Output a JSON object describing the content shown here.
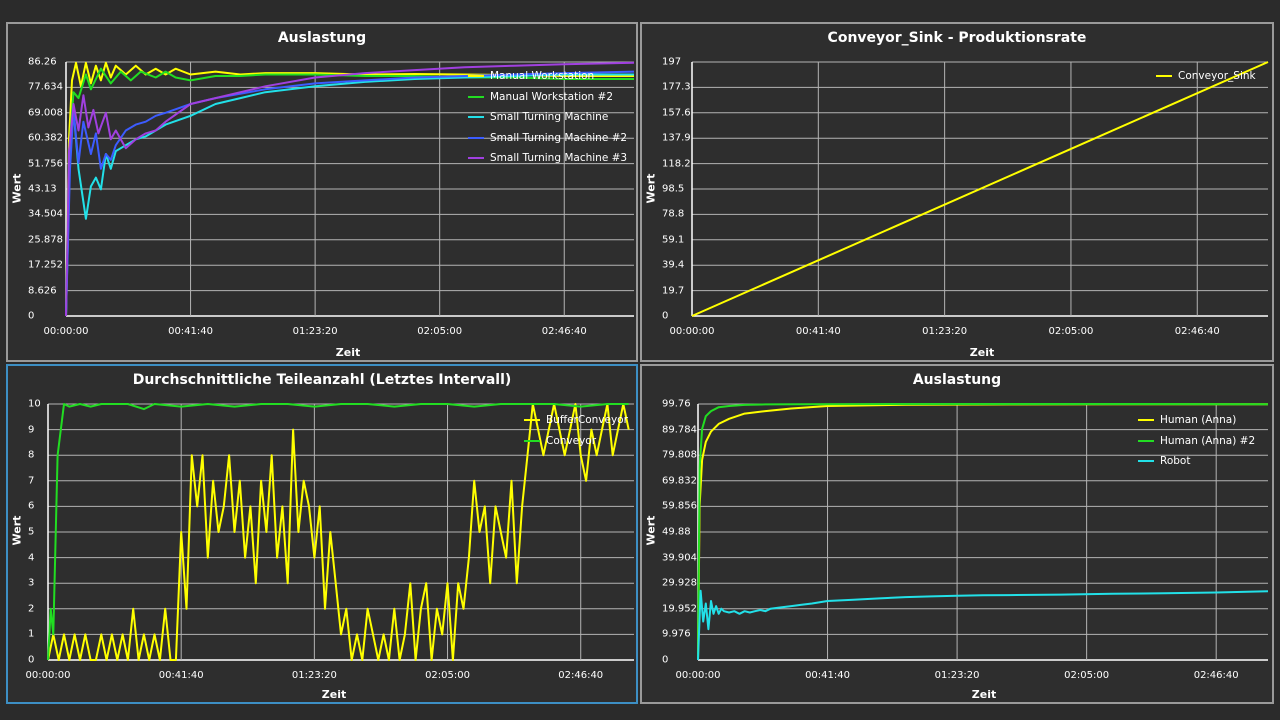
{
  "colors": {
    "background": "#2e2e2e",
    "grid": "#b4b4b4",
    "axis": "#ffffff",
    "yellow": "#ffff00",
    "green": "#22dd22",
    "cyan": "#22e0e8",
    "blue": "#3c5cff",
    "purple": "#a040e0"
  },
  "chart_data": [
    {
      "id": "util1",
      "type": "line",
      "title": "Auslastung",
      "xlabel": "Zeit",
      "ylabel": "Wert",
      "xlim": [
        0,
        11400
      ],
      "ylim": [
        0,
        86.26
      ],
      "yticks": [
        0,
        8.626,
        17.252,
        25.878,
        34.504,
        43.13,
        51.756,
        60.382,
        69.008,
        77.634,
        86.26
      ],
      "ytick_labels": [
        "0",
        "8.626",
        "17.252",
        "25.878",
        "34.504",
        "43.13",
        "51.756",
        "60.382",
        "69.008",
        "77.634",
        "86.26"
      ],
      "xticks": [
        0,
        2500,
        5000,
        7500,
        10000
      ],
      "xtick_labels": [
        "00:00:00",
        "00:41:40",
        "01:23:20",
        "02:05:00",
        "02:46:40"
      ],
      "legend_position": "top-right",
      "series": [
        {
          "name": "Manual Workstation",
          "color": "#ffff00",
          "x": [
            0,
            60,
            120,
            200,
            300,
            400,
            500,
            600,
            700,
            800,
            900,
            1000,
            1200,
            1400,
            1600,
            1800,
            2000,
            2200,
            2500,
            3000,
            3500,
            4000,
            5000,
            6000,
            7000,
            8000,
            9000,
            10000,
            11400
          ],
          "y": [
            0,
            60,
            80,
            86,
            78,
            86,
            79,
            85,
            80,
            86,
            81,
            85,
            82,
            85,
            82,
            84,
            82,
            84,
            82,
            83,
            82,
            82.5,
            82.5,
            82,
            82.2,
            82,
            81.8,
            81.5,
            81.5
          ]
        },
        {
          "name": "Manual Workstation #2",
          "color": "#22dd22",
          "x": [
            0,
            60,
            150,
            250,
            400,
            500,
            700,
            900,
            1100,
            1300,
            1500,
            1800,
            2000,
            2200,
            2500,
            3000,
            3500,
            4000,
            5000,
            6000,
            7000,
            8000,
            9000,
            10000,
            11400
          ],
          "y": [
            0,
            55,
            76,
            74,
            82,
            77,
            84,
            79,
            83,
            80,
            83,
            81,
            83,
            81,
            80,
            81.5,
            81.5,
            82,
            82,
            81.5,
            81.5,
            81,
            81,
            80.5,
            80.5
          ]
        },
        {
          "name": "Small Turning Machine",
          "color": "#22e0e8",
          "x": [
            0,
            80,
            150,
            250,
            400,
            500,
            600,
            700,
            800,
            900,
            1000,
            1200,
            1400,
            1600,
            1800,
            2000,
            2500,
            3000,
            3500,
            4000,
            5000,
            6000,
            7000,
            8000,
            9000,
            10000,
            11400
          ],
          "y": [
            0,
            55,
            70,
            50,
            33,
            44,
            47,
            43,
            55,
            50,
            56,
            58,
            60,
            61,
            63,
            65,
            68,
            72,
            74,
            76,
            78,
            79.5,
            80.5,
            81,
            81.5,
            82,
            82
          ]
        },
        {
          "name": "Small Turning Machine #2",
          "color": "#3c5cff",
          "x": [
            0,
            80,
            150,
            250,
            350,
            500,
            600,
            700,
            800,
            900,
            1000,
            1200,
            1400,
            1600,
            1800,
            2000,
            2500,
            3000,
            4000,
            5000,
            6000,
            7000,
            8000,
            9000,
            10000,
            11400
          ],
          "y": [
            0,
            50,
            70,
            52,
            66,
            55,
            62,
            50,
            55,
            53,
            58,
            63,
            65,
            66,
            68,
            69,
            72,
            74,
            77,
            79,
            80,
            81,
            81.5,
            82,
            82.5,
            83
          ]
        },
        {
          "name": "Small Turning Machine #3",
          "color": "#a040e0",
          "x": [
            0,
            60,
            150,
            250,
            350,
            450,
            550,
            650,
            800,
            900,
            1000,
            1200,
            1400,
            1600,
            1800,
            2000,
            2500,
            3000,
            4000,
            5000,
            6000,
            7000,
            8000,
            9000,
            10000,
            11400
          ],
          "y": [
            0,
            56,
            72,
            63,
            75,
            64,
            70,
            62,
            69,
            60,
            63,
            57,
            60,
            62,
            63,
            66,
            72,
            74,
            78,
            81,
            82.5,
            83.5,
            84.5,
            85,
            85.5,
            86
          ]
        }
      ]
    },
    {
      "id": "sink",
      "type": "line",
      "title": "Conveyor_Sink - Produktionsrate",
      "xlabel": "Zeit",
      "ylabel": "Wert",
      "xlim": [
        0,
        11400
      ],
      "ylim": [
        0,
        197
      ],
      "yticks": [
        0,
        19.7,
        39.4,
        59.1,
        78.8,
        98.5,
        118.2,
        137.9,
        157.6,
        177.3,
        197
      ],
      "ytick_labels": [
        "0",
        "19.7",
        "39.4",
        "59.1",
        "78.8",
        "98.5",
        "118.2",
        "137.9",
        "157.6",
        "177.3",
        "197"
      ],
      "xticks": [
        0,
        2500,
        5000,
        7500,
        10000
      ],
      "xtick_labels": [
        "00:00:00",
        "00:41:40",
        "01:23:20",
        "02:05:00",
        "02:46:40"
      ],
      "legend_position": "top-right",
      "series": [
        {
          "name": "Conveyor_Sink",
          "color": "#ffff00",
          "x": [
            0,
            11400
          ],
          "y": [
            0,
            197
          ]
        }
      ]
    },
    {
      "id": "parts",
      "type": "line",
      "title": "Durchschnittliche Teileanzahl (Letztes Intervall)",
      "xlabel": "Zeit",
      "ylabel": "Wert",
      "xlim": [
        0,
        11000
      ],
      "ylim": [
        0,
        10
      ],
      "yticks": [
        0,
        1,
        2,
        3,
        4,
        5,
        6,
        7,
        8,
        9,
        10
      ],
      "ytick_labels": [
        "0",
        "1",
        "2",
        "3",
        "4",
        "5",
        "6",
        "7",
        "8",
        "9",
        "10"
      ],
      "xticks": [
        0,
        2500,
        5000,
        7500,
        10000
      ],
      "xtick_labels": [
        "00:00:00",
        "00:41:40",
        "01:23:20",
        "02:05:00",
        "02:46:40"
      ],
      "legend_position": "top-right",
      "series": [
        {
          "name": "BufferConveyor",
          "color": "#ffff00",
          "x": [
            0,
            100,
            200,
            300,
            400,
            500,
            600,
            700,
            800,
            900,
            1000,
            1100,
            1200,
            1300,
            1400,
            1500,
            1600,
            1700,
            1800,
            1900,
            2000,
            2100,
            2200,
            2300,
            2400,
            2500,
            2600,
            2700,
            2800,
            2900,
            3000,
            3100,
            3200,
            3300,
            3400,
            3500,
            3600,
            3700,
            3800,
            3900,
            4000,
            4100,
            4200,
            4300,
            4400,
            4500,
            4600,
            4700,
            4800,
            4900,
            5000,
            5100,
            5200,
            5300,
            5400,
            5500,
            5600,
            5700,
            5800,
            5900,
            6000,
            6100,
            6200,
            6300,
            6400,
            6500,
            6600,
            6700,
            6800,
            6900,
            7000,
            7100,
            7200,
            7300,
            7400,
            7500,
            7600,
            7700,
            7800,
            7900,
            8000,
            8100,
            8200,
            8300,
            8400,
            8500,
            8600,
            8700,
            8800,
            8900,
            9000,
            9100,
            9200,
            9300,
            9400,
            9500,
            9600,
            9700,
            9800,
            9900,
            10000,
            10100,
            10200,
            10300,
            10400,
            10500,
            10600,
            10700,
            10800,
            10900
          ],
          "y": [
            0,
            1,
            0,
            1,
            0,
            1,
            0,
            1,
            0,
            0,
            1,
            0,
            1,
            0,
            1,
            0,
            2,
            0,
            1,
            0,
            1,
            0,
            2,
            0,
            0,
            5,
            2,
            8,
            6,
            8,
            4,
            7,
            5,
            6,
            8,
            5,
            7,
            4,
            6,
            3,
            7,
            5,
            8,
            4,
            6,
            3,
            9,
            5,
            7,
            6,
            4,
            6,
            2,
            5,
            3,
            1,
            2,
            0,
            1,
            0,
            2,
            1,
            0,
            1,
            0,
            2,
            0,
            1,
            3,
            0,
            2,
            3,
            0,
            2,
            1,
            3,
            0,
            3,
            2,
            4,
            7,
            5,
            6,
            3,
            6,
            5,
            4,
            7,
            3,
            6,
            8,
            10,
            9,
            8,
            9,
            10,
            9,
            8,
            9,
            10,
            8,
            7,
            9,
            8,
            9,
            10,
            8,
            9,
            10,
            9
          ]
        },
        {
          "name": "Conveyor",
          "color": "#22dd22",
          "x": [
            0,
            50,
            100,
            180,
            300,
            400,
            600,
            800,
            1000,
            1500,
            1800,
            2000,
            2500,
            3000,
            3500,
            4000,
            4500,
            5000,
            5500,
            6000,
            6500,
            7000,
            7500,
            8000,
            8500,
            9000,
            9500,
            10000,
            10500,
            10900
          ],
          "y": [
            0,
            2,
            1,
            8,
            10,
            9.9,
            10,
            9.9,
            10,
            10,
            9.8,
            10,
            9.9,
            10,
            9.9,
            10,
            10,
            9.9,
            10,
            10,
            9.9,
            10,
            10,
            9.9,
            10,
            10,
            10,
            9.9,
            10,
            10
          ]
        }
      ]
    },
    {
      "id": "util2",
      "type": "line",
      "title": "Auslastung",
      "xlabel": "Zeit",
      "ylabel": "Wert",
      "xlim": [
        0,
        11000
      ],
      "ylim": [
        0,
        99.76
      ],
      "yticks": [
        0,
        9.976,
        19.952,
        29.928,
        39.904,
        49.88,
        59.856,
        69.832,
        79.808,
        89.784,
        99.76
      ],
      "ytick_labels": [
        "0",
        "9.976",
        "19.952",
        "29.928",
        "39.904",
        "49.88",
        "59.856",
        "69.832",
        "79.808",
        "89.784",
        "99.76"
      ],
      "xticks": [
        0,
        2500,
        5000,
        7500,
        10000
      ],
      "xtick_labels": [
        "00:00:00",
        "00:41:40",
        "01:23:20",
        "02:05:00",
        "02:46:40"
      ],
      "legend_position": "top-right",
      "series": [
        {
          "name": "Human (Anna)",
          "color": "#ffff00",
          "x": [
            0,
            30,
            80,
            150,
            250,
            400,
            600,
            900,
            1300,
            1800,
            2500,
            4000,
            6000,
            8000,
            11000
          ],
          "y": [
            0,
            60,
            78,
            85,
            89,
            92,
            94,
            96,
            97,
            98,
            99,
            99.5,
            99.6,
            99.7,
            99.7
          ]
        },
        {
          "name": "Human (Anna) #2",
          "color": "#22dd22",
          "x": [
            0,
            30,
            80,
            150,
            250,
            400,
            600,
            900,
            1300,
            2000,
            4000,
            6000,
            8000,
            11000
          ],
          "y": [
            0,
            75,
            90,
            95,
            97,
            98.5,
            99,
            99.4,
            99.6,
            99.7,
            99.75,
            99.76,
            99.76,
            99.7
          ]
        },
        {
          "name": "Robot",
          "color": "#22e0e8",
          "x": [
            0,
            50,
            100,
            150,
            200,
            250,
            300,
            350,
            400,
            450,
            500,
            600,
            700,
            800,
            900,
            1000,
            1100,
            1200,
            1300,
            1400,
            1600,
            1800,
            2000,
            2200,
            2500,
            3000,
            3500,
            4000,
            4500,
            5000,
            5500,
            6000,
            7000,
            8000,
            9000,
            10000,
            11000
          ],
          "y": [
            0,
            27,
            15,
            22,
            12,
            23,
            18,
            21,
            18,
            20,
            19,
            18.5,
            19,
            18,
            19,
            18.5,
            19,
            19.5,
            19,
            20,
            20.5,
            21,
            21.5,
            22,
            23,
            23.5,
            24,
            24.5,
            24.8,
            25,
            25.2,
            25.3,
            25.5,
            25.8,
            26,
            26.3,
            26.8
          ]
        }
      ]
    }
  ]
}
